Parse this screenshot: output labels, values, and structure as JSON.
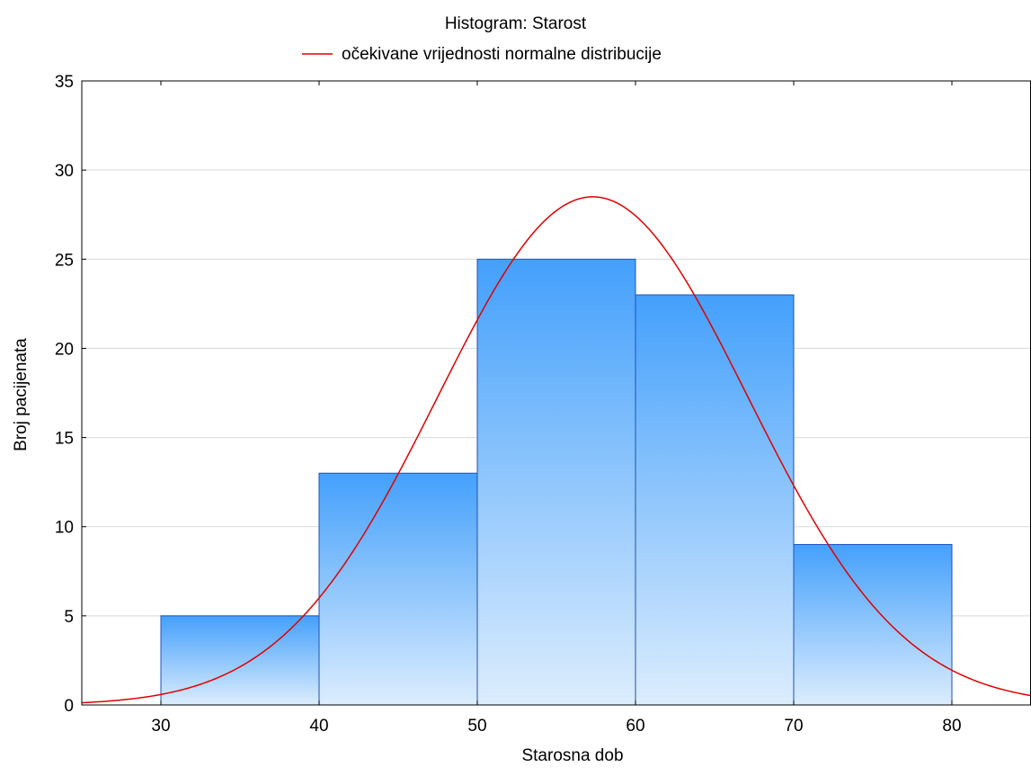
{
  "chart_data": {
    "type": "bar",
    "title": "Histogram: Starost",
    "xlabel": "Starosna dob",
    "ylabel": "Broj pacijenata",
    "xlim": [
      25,
      85
    ],
    "ylim": [
      0,
      35
    ],
    "x_ticks": [
      30,
      40,
      50,
      60,
      70,
      80
    ],
    "y_ticks": [
      0,
      5,
      10,
      15,
      20,
      25,
      30,
      35
    ],
    "grid": true,
    "legend_position": "top",
    "bins": [
      {
        "start": 30,
        "end": 40,
        "value": 5
      },
      {
        "start": 40,
        "end": 50,
        "value": 13
      },
      {
        "start": 50,
        "end": 60,
        "value": 25
      },
      {
        "start": 60,
        "end": 70,
        "value": 23
      },
      {
        "start": 70,
        "end": 80,
        "value": 9
      }
    ],
    "series": [
      {
        "name": "očekivane vrijednosti normalne distribucije",
        "type": "line",
        "color": "#e00000",
        "mean": 57.3,
        "std": 9.8,
        "peak": 28.5
      }
    ],
    "colors": {
      "bar_top": "#44a0fc",
      "bar_bottom": "#dcedfd",
      "bar_stroke": "#1f4fbf",
      "grid": "#d9d9d9",
      "curve": "#e00000"
    }
  }
}
